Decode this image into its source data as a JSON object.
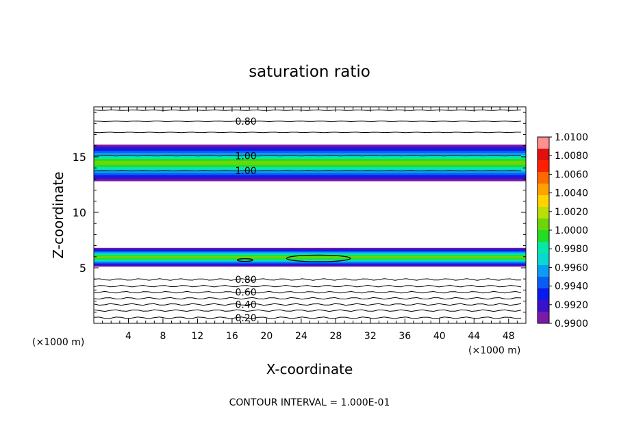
{
  "chart_data": {
    "type": "contour",
    "title": "saturation ratio",
    "xlabel": "X-coordinate",
    "ylabel": "Z-coordinate",
    "x_unit_left": "(×1000 m)",
    "x_unit_right": "(×1000 m)",
    "xlim": [
      0,
      50
    ],
    "ylim": [
      0,
      19.5
    ],
    "x_ticks": [
      4,
      8,
      12,
      16,
      20,
      24,
      28,
      32,
      36,
      40,
      44,
      48
    ],
    "y_ticks": [
      5,
      10,
      15
    ],
    "footer": "CONTOUR INTERVAL = 1.000E-01",
    "colorbar": {
      "min": 0.99,
      "max": 1.01,
      "labels": [
        "1.0100",
        "1.0080",
        "1.0060",
        "1.0040",
        "1.0020",
        "1.0000",
        "0.9980",
        "0.9960",
        "0.9940",
        "0.9920",
        "0.9900"
      ],
      "colors": [
        "#7a1aa8",
        "#3a10c8",
        "#0a1aee",
        "#0a5cf6",
        "#0b9cf4",
        "#08d8d0",
        "#06e8a8",
        "#22dd22",
        "#6cd608",
        "#b8e008",
        "#ffd400",
        "#ffa200",
        "#ff6a00",
        "#ff2000",
        "#e01010",
        "#ff9090"
      ]
    },
    "filled_bands": [
      {
        "z_bottom": 12.8,
        "z_top": 16.1,
        "peak": 1.0005
      },
      {
        "z_bottom": 5.1,
        "z_top": 6.8,
        "peak": 1.0002
      }
    ],
    "contour_lines": [
      {
        "z": 0.5,
        "label": "0.20"
      },
      {
        "z": 1.15,
        "label": ""
      },
      {
        "z": 1.7,
        "label": "0.40"
      },
      {
        "z": 2.25,
        "label": ""
      },
      {
        "z": 2.8,
        "label": "0.60"
      },
      {
        "z": 3.35,
        "label": ""
      },
      {
        "z": 3.95,
        "label": "0.80"
      },
      {
        "z": 18.2,
        "label": "0.80"
      },
      {
        "z": 19.2,
        "label": ""
      },
      {
        "z": 17.2,
        "label": ""
      },
      {
        "z": 15.1,
        "label": "1.00"
      },
      {
        "z": 13.75,
        "label": "1.00"
      }
    ],
    "closed_contours": [
      {
        "x_center": 17.5,
        "z_center": 5.7,
        "x_half": 0.9,
        "z_half": 0.12
      },
      {
        "x_center": 26,
        "z_center": 5.85,
        "x_half": 3.7,
        "z_half": 0.3
      }
    ]
  }
}
